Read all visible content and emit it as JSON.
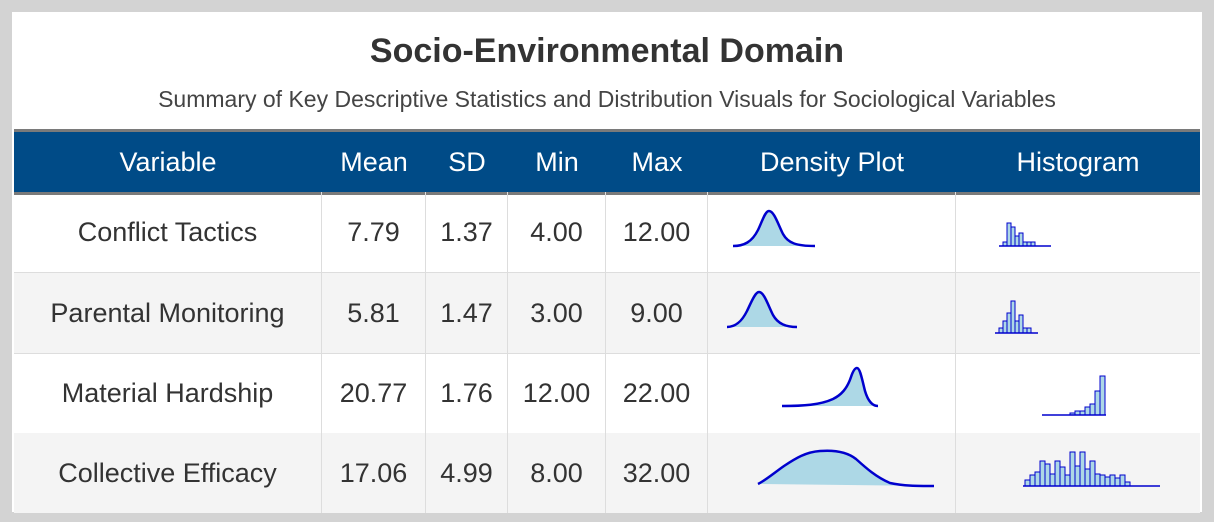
{
  "title": "Socio-Environmental Domain",
  "subtitle": "Summary of Key Descriptive Statistics and Distribution Visuals for Sociological Variables",
  "colors": {
    "header_bg": "#004b87",
    "density_fill": "#add8e6",
    "density_line": "#0000cd",
    "hist_fill": "#add8e6",
    "hist_line": "#0000cd",
    "alt_row": "#f4f4f4"
  },
  "header": {
    "variable": "Variable",
    "mean": "Mean",
    "sd": "SD",
    "min": "Min",
    "max": "Max",
    "density": "Density Plot",
    "histogram": "Histogram"
  },
  "rows": [
    {
      "variable": "Conflict Tactics",
      "mean": "7.79",
      "sd": "1.37",
      "min": "4.00",
      "max": "12.00",
      "density_icon": "density-plot",
      "histogram_icon": "histogram"
    },
    {
      "variable": "Parental Monitoring",
      "mean": "5.81",
      "sd": "1.47",
      "min": "3.00",
      "max": "9.00",
      "density_icon": "density-plot",
      "histogram_icon": "histogram"
    },
    {
      "variable": "Material Hardship",
      "mean": "20.77",
      "sd": "1.76",
      "min": "12.00",
      "max": "22.00",
      "density_icon": "density-plot",
      "histogram_icon": "histogram"
    },
    {
      "variable": "Collective Efficacy",
      "mean": "17.06",
      "sd": "4.99",
      "min": "8.00",
      "max": "32.00",
      "density_icon": "density-plot",
      "histogram_icon": "histogram"
    }
  ]
}
